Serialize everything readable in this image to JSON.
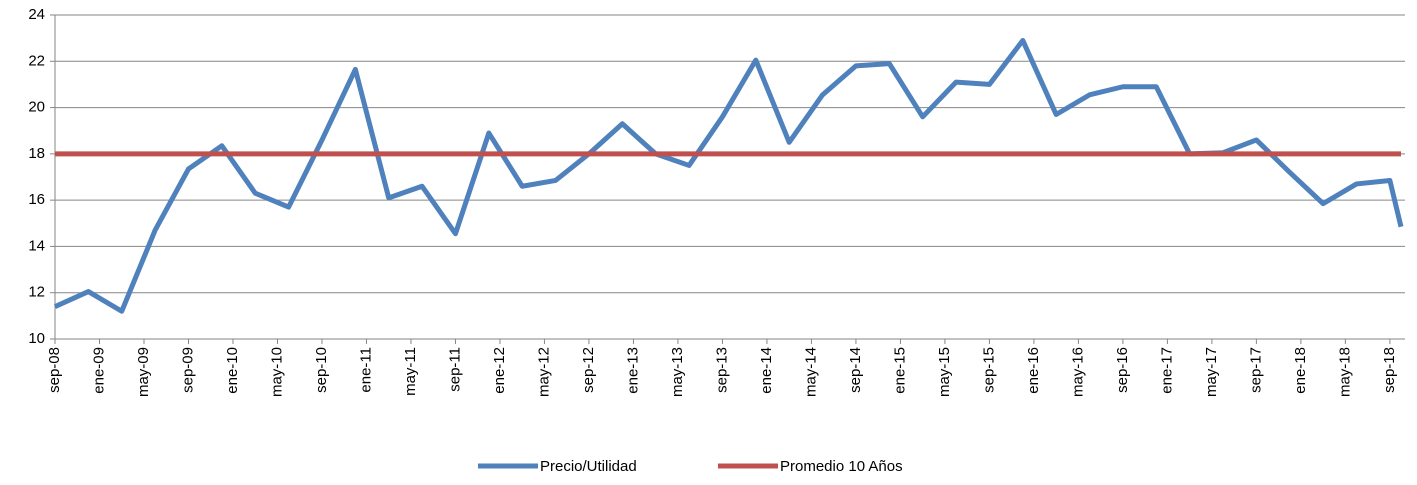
{
  "chart_data": {
    "type": "line",
    "x": [
      "sep-08",
      "dic-08",
      "mar-09",
      "jun-09",
      "sep-09",
      "dic-09",
      "mar-10",
      "jun-10",
      "sep-10",
      "dic-10",
      "mar-11",
      "jun-11",
      "sep-11",
      "dic-11",
      "mar-12",
      "jun-12",
      "sep-12",
      "dic-12",
      "mar-13",
      "jun-13",
      "sep-13",
      "dic-13",
      "mar-14",
      "jun-14",
      "sep-14",
      "dic-14",
      "mar-15",
      "jun-15",
      "sep-15",
      "dic-15",
      "mar-16",
      "jun-16",
      "sep-16",
      "dic-16",
      "mar-17",
      "jun-17",
      "sep-17",
      "dic-17",
      "mar-18",
      "jun-18",
      "sep-18",
      "oct-18"
    ],
    "series": [
      {
        "name": "Precio/Utilidad",
        "color": "#4f81bd",
        "values": [
          11.4,
          12.05,
          11.2,
          14.7,
          17.35,
          18.35,
          16.3,
          15.7,
          18.6,
          21.65,
          16.1,
          16.6,
          14.55,
          18.9,
          16.6,
          16.85,
          18.0,
          19.3,
          18.0,
          17.5,
          19.6,
          22.05,
          18.5,
          20.55,
          21.8,
          21.9,
          19.6,
          21.1,
          21.0,
          22.9,
          19.7,
          20.55,
          20.9,
          20.9,
          18.0,
          18.05,
          18.6,
          17.2,
          15.85,
          16.7,
          16.85,
          14.85
        ]
      },
      {
        "name": "Promedio 10 Años",
        "color": "#c0504d",
        "values": [
          18,
          18,
          18,
          18,
          18,
          18,
          18,
          18,
          18,
          18,
          18,
          18,
          18,
          18,
          18,
          18,
          18,
          18,
          18,
          18,
          18,
          18,
          18,
          18,
          18,
          18,
          18,
          18,
          18,
          18,
          18,
          18,
          18,
          18,
          18,
          18,
          18,
          18,
          18,
          18,
          18,
          18
        ]
      }
    ],
    "xlim": [
      "sep-08",
      "oct-18"
    ],
    "xticks": [
      "sep-08",
      "ene-09",
      "may-09",
      "sep-09",
      "ene-10",
      "may-10",
      "sep-10",
      "ene-11",
      "may-11",
      "sep-11",
      "ene-12",
      "may-12",
      "sep-12",
      "ene-13",
      "may-13",
      "sep-13",
      "ene-14",
      "may-14",
      "sep-14",
      "ene-15",
      "may-15",
      "sep-15",
      "ene-16",
      "may-16",
      "sep-16",
      "ene-17",
      "may-17",
      "sep-17",
      "ene-18",
      "may-18",
      "sep-18"
    ],
    "ylim": [
      10,
      24
    ],
    "yticks": [
      10,
      12,
      14,
      16,
      18,
      20,
      22,
      24
    ],
    "grid": true,
    "legend": "bottom"
  }
}
